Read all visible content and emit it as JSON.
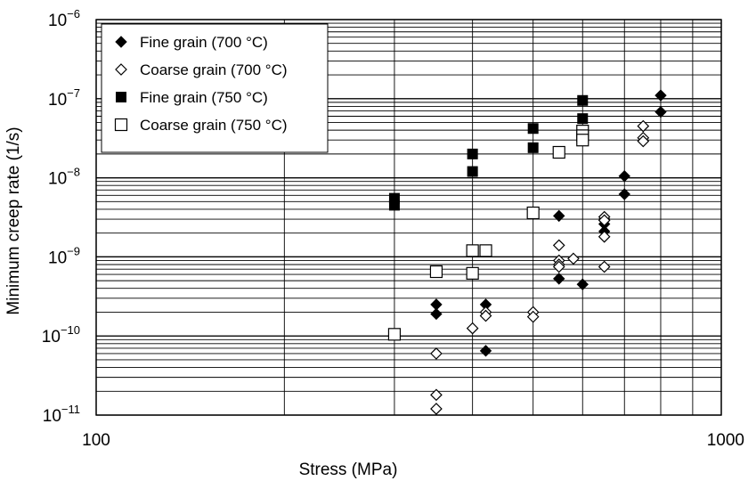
{
  "chart_data": {
    "type": "scatter",
    "title": "",
    "xlabel": "Stress (MPa)",
    "ylabel": "Minimum creep rate (1/s)",
    "x_scale": "log",
    "y_scale": "log",
    "xlim": [
      100,
      1000
    ],
    "ylim": [
      1e-11,
      1e-06
    ],
    "grid": true,
    "legend_position": "top-left",
    "x_ticks": [
      {
        "value": 100,
        "label": "100"
      },
      {
        "value": 1000,
        "label": "1000"
      }
    ],
    "y_ticks": [
      {
        "value": 1e-11,
        "base": "10",
        "exp": "−11"
      },
      {
        "value": 1e-10,
        "base": "10",
        "exp": "−10"
      },
      {
        "value": 1e-09,
        "base": "10",
        "exp": "−9"
      },
      {
        "value": 1e-08,
        "base": "10",
        "exp": "−8"
      },
      {
        "value": 1e-07,
        "base": "10",
        "exp": "−7"
      },
      {
        "value": 1e-06,
        "base": "10",
        "exp": "−6"
      }
    ],
    "series": [
      {
        "name": "Fine grain (700 °C)",
        "marker": "diamond-filled",
        "points": [
          [
            350,
            2.5e-10
          ],
          [
            350,
            1.9e-10
          ],
          [
            420,
            2.5e-10
          ],
          [
            420,
            6.5e-11
          ],
          [
            550,
            3.3e-09
          ],
          [
            550,
            5.3e-10
          ],
          [
            600,
            4.5e-10
          ],
          [
            650,
            3e-09
          ],
          [
            650,
            2.6e-09
          ],
          [
            650,
            2.1e-09
          ],
          [
            700,
            1.05e-08
          ],
          [
            700,
            6.2e-09
          ],
          [
            800,
            1.1e-07
          ],
          [
            800,
            6.8e-08
          ]
        ]
      },
      {
        "name": "Coarse grain (700 °C)",
        "marker": "diamond-open",
        "points": [
          [
            350,
            6e-11
          ],
          [
            350,
            1.8e-11
          ],
          [
            350,
            1.2e-11
          ],
          [
            400,
            1.25e-10
          ],
          [
            420,
            2e-10
          ],
          [
            420,
            1.8e-10
          ],
          [
            500,
            2e-10
          ],
          [
            500,
            1.75e-10
          ],
          [
            550,
            1.4e-09
          ],
          [
            550,
            9e-10
          ],
          [
            550,
            8e-10
          ],
          [
            550,
            7.5e-10
          ],
          [
            580,
            9.5e-10
          ],
          [
            650,
            3.2e-09
          ],
          [
            650,
            2.9e-09
          ],
          [
            650,
            1.8e-09
          ],
          [
            650,
            7.5e-10
          ],
          [
            750,
            4.5e-08
          ],
          [
            750,
            3.2e-08
          ],
          [
            750,
            2.9e-08
          ]
        ]
      },
      {
        "name": "Fine grain (750 °C)",
        "marker": "square-filled",
        "points": [
          [
            300,
            5.5e-09
          ],
          [
            300,
            4.5e-09
          ],
          [
            400,
            2e-08
          ],
          [
            400,
            1.2e-08
          ],
          [
            500,
            4.2e-08
          ],
          [
            500,
            2.4e-08
          ],
          [
            600,
            9.5e-08
          ],
          [
            600,
            5.6e-08
          ]
        ]
      },
      {
        "name": "Coarse grain (750 °C)",
        "marker": "square-open",
        "points": [
          [
            300,
            1.05e-10
          ],
          [
            350,
            6.5e-10
          ],
          [
            400,
            1.2e-09
          ],
          [
            400,
            6.2e-10
          ],
          [
            420,
            1.2e-09
          ],
          [
            500,
            3.6e-09
          ],
          [
            550,
            2.1e-08
          ],
          [
            600,
            3.9e-08
          ],
          [
            600,
            3.4e-08
          ],
          [
            600,
            3e-08
          ]
        ]
      }
    ]
  }
}
